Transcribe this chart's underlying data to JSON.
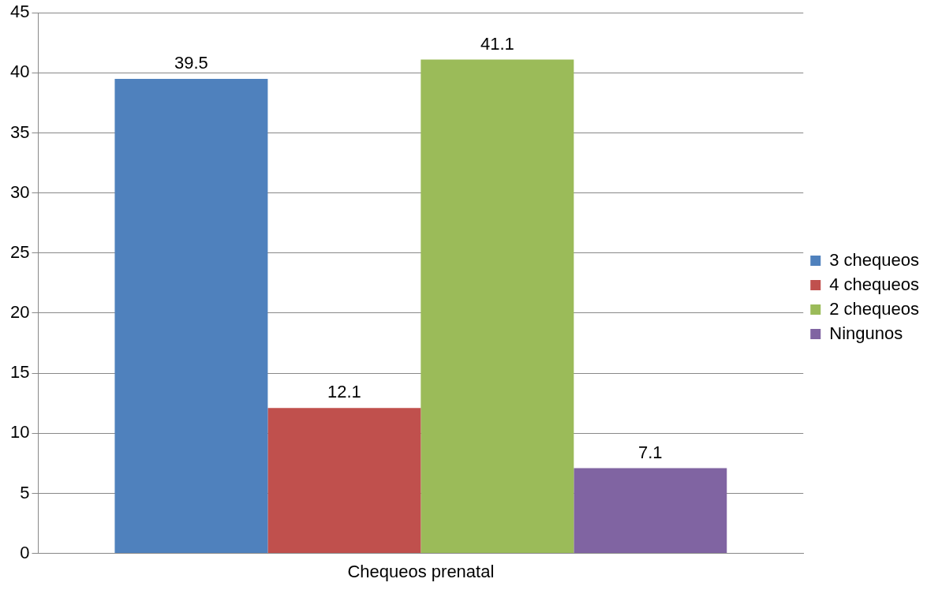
{
  "chart_data": {
    "type": "bar",
    "categories": [
      "Chequeos prenatal"
    ],
    "series": [
      {
        "name": "3 chequeos",
        "color": "#4f81bd",
        "values": [
          39.5
        ]
      },
      {
        "name": "4 chequeos",
        "color": "#c0504d",
        "values": [
          12.1
        ]
      },
      {
        "name": "2 chequeos",
        "color": "#9bbb59",
        "values": [
          41.1
        ]
      },
      {
        "name": "Ningunos",
        "color": "#8064a2",
        "values": [
          7.1
        ]
      }
    ],
    "ylim": [
      0,
      45
    ],
    "yticks": [
      0,
      5,
      10,
      15,
      20,
      25,
      30,
      35,
      40,
      45
    ],
    "grid": "y",
    "legend": "right",
    "data_labels": true
  }
}
